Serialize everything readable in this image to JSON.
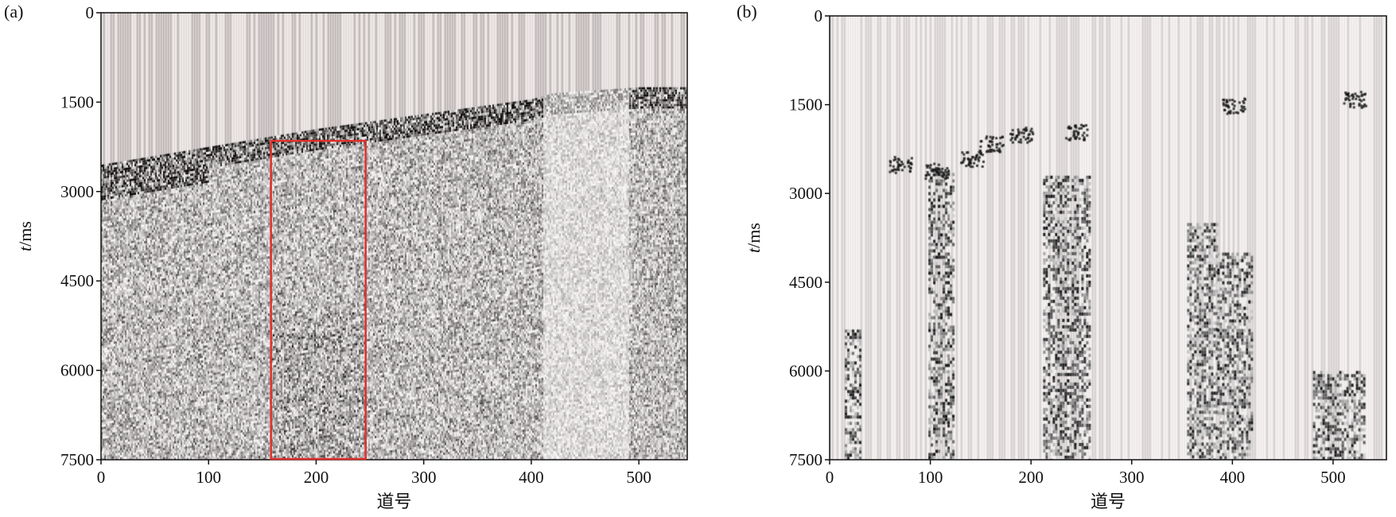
{
  "chart_data": [
    {
      "type": "heatmap",
      "panel_label": "(a)",
      "xlabel": "道号",
      "ylabel_italic": "t",
      "ylabel_rest": "/ms",
      "xlim": [
        0,
        545
      ],
      "ylim": [
        7500,
        0
      ],
      "xticks": [
        "0",
        "100",
        "200",
        "300",
        "400",
        "500"
      ],
      "yticks": [
        "0",
        "1500",
        "3000",
        "4500",
        "6000",
        "7500"
      ],
      "first_arrival": {
        "trace": [
          0,
          100,
          200,
          300,
          400,
          420,
          500,
          545
        ],
        "t_ms": [
          2550,
          2250,
          1950,
          1700,
          1450,
          1350,
          1250,
          1250
        ]
      },
      "highlight_box": {
        "trace": [
          158,
          246
        ],
        "t_ms": [
          2150,
          7500
        ],
        "color": "#e0302a"
      }
    },
    {
      "type": "heatmap",
      "panel_label": "(b)",
      "xlabel": "道号",
      "ylabel_italic": "t",
      "ylabel_rest": "/ms",
      "xlim": [
        0,
        553
      ],
      "ylim": [
        7500,
        0
      ],
      "xticks": [
        "0",
        "100",
        "200",
        "300",
        "400",
        "500"
      ],
      "yticks": [
        "0",
        "1500",
        "3000",
        "4500",
        "6000",
        "7500"
      ],
      "noise_bands": [
        {
          "trace": [
            15,
            30
          ],
          "t_ms": [
            5300,
            7500
          ]
        },
        {
          "trace": [
            98,
            122
          ],
          "t_ms": [
            2600,
            7500
          ]
        },
        {
          "trace": [
            212,
            258
          ],
          "t_ms": [
            2700,
            7500
          ]
        },
        {
          "trace": [
            355,
            385
          ],
          "t_ms": [
            3500,
            7500
          ]
        },
        {
          "trace": [
            385,
            420
          ],
          "t_ms": [
            4000,
            7500
          ]
        },
        {
          "trace": [
            480,
            530
          ],
          "t_ms": [
            6000,
            7500
          ]
        }
      ],
      "events": [
        {
          "trace": 70,
          "t_ms": 2500
        },
        {
          "trace": 105,
          "t_ms": 2600
        },
        {
          "trace": 140,
          "t_ms": 2400
        },
        {
          "trace": 160,
          "t_ms": 2150
        },
        {
          "trace": 190,
          "t_ms": 2000
        },
        {
          "trace": 245,
          "t_ms": 1950
        },
        {
          "trace": 400,
          "t_ms": 1500
        },
        {
          "trace": 520,
          "t_ms": 1400
        }
      ]
    }
  ]
}
